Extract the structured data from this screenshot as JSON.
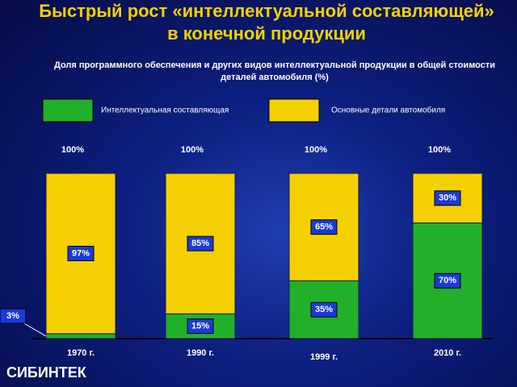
{
  "chart_data": {
    "type": "stacked-bar",
    "title": "Быстрый рост «интеллектуальной составляющей» в конечной продукции",
    "subtitle": "Доля программного обеспечения и других видов интеллектуальной продукции в общей стоимости деталей автомобиля (%)",
    "categories": [
      "1970 г.",
      "1990 г.",
      "1999 г.",
      "2010 г."
    ],
    "series": [
      {
        "name": "Интеллектуальная составляющая",
        "color": "#22b02a",
        "values": [
          3,
          15,
          35,
          70
        ],
        "value_labels": [
          "3%",
          "15%",
          "35%",
          "70%"
        ]
      },
      {
        "name": "Основные детали автомобиля",
        "color": "#f5d000",
        "values": [
          97,
          85,
          65,
          30
        ],
        "value_labels": [
          "97%",
          "85%",
          "65%",
          "30%"
        ]
      }
    ],
    "totals": {
      "values": [
        100,
        100,
        100,
        100
      ],
      "value_labels": [
        "100%",
        "100%",
        "100%",
        "100%"
      ]
    },
    "ylim": [
      0,
      100
    ]
  },
  "footer": "СИБИНТЕК"
}
